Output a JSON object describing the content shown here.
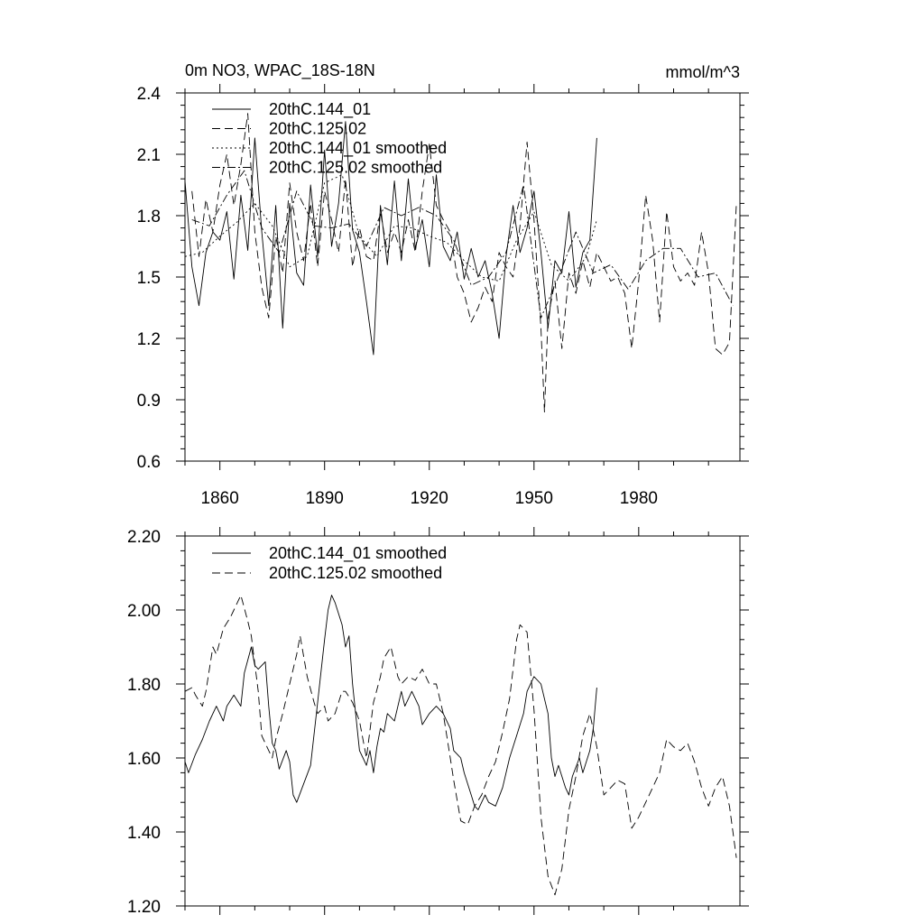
{
  "chart_data": [
    {
      "type": "line",
      "title": "0m NO3, WPAC_18S-18N",
      "units": "mmol/m^3",
      "xlabel": "",
      "ylabel": "",
      "xlim": [
        1850,
        2009
      ],
      "ylim": [
        0.6,
        2.4
      ],
      "x_ticks": [
        1860,
        1890,
        1920,
        1950,
        1980
      ],
      "x_tick_labels": [
        "1860",
        "1890",
        "1920",
        "1950",
        "1980"
      ],
      "y_ticks": [
        0.6,
        0.9,
        1.2,
        1.5,
        1.8,
        2.1,
        2.4
      ],
      "y_tick_labels": [
        "0.6",
        "0.9",
        "1.2",
        "1.5",
        "1.8",
        "2.1",
        "2.4"
      ],
      "legend_position": "top-left",
      "series": [
        {
          "name": "20thC.144_01",
          "dash": "solid",
          "x": [
            1850,
            1852,
            1854,
            1856,
            1858,
            1860,
            1862,
            1864,
            1866,
            1868,
            1870,
            1872,
            1874,
            1876,
            1878,
            1880,
            1882,
            1884,
            1886,
            1888,
            1890,
            1892,
            1894,
            1896,
            1898,
            1900,
            1902,
            1904,
            1906,
            1908,
            1910,
            1912,
            1914,
            1916,
            1918,
            1920,
            1922,
            1924,
            1926,
            1928,
            1930,
            1932,
            1934,
            1936,
            1938,
            1940,
            1942,
            1944,
            1946,
            1948,
            1950,
            1952,
            1954,
            1956,
            1958,
            1960,
            1962,
            1964,
            1966,
            1968
          ],
          "values": [
            1.97,
            1.55,
            1.36,
            1.62,
            1.72,
            1.68,
            1.82,
            1.49,
            1.9,
            1.63,
            2.18,
            1.72,
            1.36,
            1.85,
            1.25,
            1.86,
            1.52,
            1.46,
            1.95,
            1.6,
            2.12,
            1.65,
            1.86,
            2.26,
            1.73,
            1.62,
            1.38,
            1.12,
            1.85,
            1.56,
            1.97,
            1.58,
            1.98,
            1.64,
            1.78,
            1.55,
            2.0,
            1.65,
            1.58,
            1.72,
            1.49,
            1.64,
            1.5,
            1.58,
            1.42,
            1.2,
            1.6,
            1.85,
            1.62,
            1.74,
            1.92,
            1.62,
            1.25,
            1.58,
            1.52,
            1.82,
            1.45,
            1.62,
            1.68,
            2.18
          ]
        },
        {
          "name": "20thC.125.02",
          "dash": "dashed",
          "x": [
            1852,
            1854,
            1856,
            1858,
            1860,
            1862,
            1864,
            1866,
            1868,
            1870,
            1872,
            1874,
            1876,
            1878,
            1880,
            1882,
            1884,
            1886,
            1888,
            1890,
            1892,
            1894,
            1896,
            1898,
            1900,
            1902,
            1904,
            1906,
            1908,
            1910,
            1912,
            1914,
            1916,
            1918,
            1920,
            1922,
            1924,
            1926,
            1928,
            1930,
            1932,
            1934,
            1936,
            1938,
            1940,
            1942,
            1944,
            1946,
            1948,
            1950,
            1952,
            1953,
            1954,
            1956,
            1958,
            1960,
            1962,
            1964,
            1966,
            1968,
            1970,
            1972,
            1974,
            1976,
            1978,
            1980,
            1982,
            1984,
            1986,
            1988,
            1990,
            1992,
            1994,
            1996,
            1998,
            2000,
            2002,
            2004,
            2006,
            2008
          ],
          "values": [
            1.92,
            1.6,
            1.88,
            1.72,
            1.95,
            2.1,
            1.85,
            2.05,
            2.3,
            1.72,
            1.45,
            1.3,
            1.7,
            1.52,
            1.96,
            1.72,
            1.58,
            1.86,
            1.55,
            1.92,
            1.78,
            1.62,
            1.98,
            1.55,
            1.74,
            1.6,
            1.58,
            1.82,
            1.62,
            1.72,
            1.62,
            1.78,
            1.62,
            1.92,
            2.15,
            1.85,
            1.78,
            1.72,
            1.5,
            1.42,
            1.28,
            1.35,
            1.45,
            1.38,
            1.62,
            1.55,
            1.5,
            1.75,
            2.16,
            1.78,
            1.25,
            0.84,
            1.3,
            1.48,
            1.15,
            1.52,
            1.42,
            1.58,
            1.45,
            1.62,
            1.55,
            1.48,
            1.5,
            1.42,
            1.15,
            1.48,
            1.9,
            1.68,
            1.28,
            1.82,
            1.55,
            1.48,
            1.52,
            1.46,
            1.72,
            1.52,
            1.15,
            1.12,
            1.18,
            1.86
          ]
        },
        {
          "name": "20thC.144_01 smoothed",
          "dash": "dotted",
          "x": [
            1850,
            1855,
            1860,
            1865,
            1870,
            1875,
            1880,
            1885,
            1890,
            1895,
            1900,
            1905,
            1910,
            1915,
            1920,
            1925,
            1930,
            1935,
            1940,
            1945,
            1950,
            1955,
            1960,
            1965,
            1968
          ],
          "values": [
            1.6,
            1.62,
            1.7,
            1.77,
            1.86,
            1.75,
            1.55,
            1.6,
            1.96,
            2.0,
            1.7,
            1.6,
            1.75,
            1.74,
            1.7,
            1.67,
            1.58,
            1.5,
            1.48,
            1.68,
            1.82,
            1.56,
            1.48,
            1.6,
            1.78
          ]
        },
        {
          "name": "20thC.125.02 smoothed",
          "dash": "dash-dot",
          "x": [
            1852,
            1857,
            1862,
            1867,
            1872,
            1877,
            1882,
            1887,
            1892,
            1897,
            1902,
            1907,
            1912,
            1917,
            1922,
            1927,
            1932,
            1937,
            1942,
            1947,
            1952,
            1957,
            1962,
            1967,
            1972,
            1977,
            1982,
            1987,
            1992,
            1997,
            2002,
            2007
          ],
          "values": [
            1.78,
            1.75,
            1.9,
            2.02,
            1.74,
            1.62,
            1.92,
            1.75,
            1.74,
            1.76,
            1.65,
            1.84,
            1.8,
            1.84,
            1.8,
            1.68,
            1.46,
            1.5,
            1.62,
            1.95,
            1.3,
            1.5,
            1.72,
            1.52,
            1.56,
            1.44,
            1.58,
            1.64,
            1.64,
            1.5,
            1.52,
            1.36
          ]
        }
      ]
    },
    {
      "type": "line",
      "title": "",
      "xlabel": "",
      "ylabel": "",
      "xlim": [
        1850,
        2009
      ],
      "ylim": [
        1.2,
        2.2
      ],
      "x_ticks": [
        1860,
        1890,
        1920,
        1950,
        1980
      ],
      "y_ticks": [
        1.2,
        1.4,
        1.6,
        1.8,
        2.0,
        2.2
      ],
      "y_tick_labels": [
        "1.20",
        "1.40",
        "1.60",
        "1.80",
        "2.00",
        "2.20"
      ],
      "legend_position": "top-left",
      "series": [
        {
          "name": "20thC.144_01 smoothed",
          "dash": "solid",
          "x": [
            1850,
            1851,
            1853,
            1855,
            1857,
            1859,
            1861,
            1862,
            1864,
            1866,
            1867,
            1869,
            1870,
            1871,
            1873,
            1874,
            1875,
            1876,
            1877,
            1879,
            1880,
            1881,
            1882,
            1884,
            1886,
            1888,
            1890,
            1891,
            1892,
            1893,
            1895,
            1896,
            1897,
            1898,
            1900,
            1901,
            1902,
            1903,
            1904,
            1905,
            1906,
            1907,
            1908,
            1910,
            1912,
            1913,
            1915,
            1917,
            1918,
            1920,
            1922,
            1924,
            1926,
            1927,
            1929,
            1930,
            1932,
            1933,
            1934,
            1936,
            1937,
            1939,
            1941,
            1943,
            1945,
            1947,
            1948,
            1950,
            1952,
            1954,
            1955,
            1956,
            1957,
            1959,
            1960,
            1961,
            1963,
            1964,
            1966,
            1967,
            1968
          ],
          "values": [
            1.59,
            1.56,
            1.61,
            1.65,
            1.7,
            1.74,
            1.7,
            1.74,
            1.77,
            1.74,
            1.83,
            1.9,
            1.85,
            1.84,
            1.86,
            1.74,
            1.64,
            1.62,
            1.57,
            1.62,
            1.59,
            1.5,
            1.48,
            1.53,
            1.58,
            1.75,
            1.92,
            2.0,
            2.04,
            2.02,
            1.96,
            1.9,
            1.93,
            1.8,
            1.62,
            1.6,
            1.58,
            1.62,
            1.56,
            1.63,
            1.68,
            1.67,
            1.72,
            1.7,
            1.78,
            1.74,
            1.78,
            1.74,
            1.69,
            1.72,
            1.74,
            1.72,
            1.68,
            1.62,
            1.6,
            1.56,
            1.5,
            1.47,
            1.46,
            1.5,
            1.48,
            1.47,
            1.52,
            1.6,
            1.66,
            1.72,
            1.78,
            1.82,
            1.8,
            1.72,
            1.6,
            1.55,
            1.58,
            1.52,
            1.5,
            1.55,
            1.6,
            1.56,
            1.62,
            1.68,
            1.79
          ]
        },
        {
          "name": "20thC.125.02 smoothed",
          "dash": "dashed",
          "x": [
            1850,
            1852,
            1853,
            1855,
            1856,
            1858,
            1859,
            1861,
            1863,
            1864,
            1866,
            1868,
            1869,
            1871,
            1872,
            1874,
            1875,
            1876,
            1878,
            1880,
            1882,
            1883,
            1885,
            1887,
            1888,
            1890,
            1891,
            1893,
            1895,
            1896,
            1898,
            1900,
            1902,
            1904,
            1906,
            1907,
            1909,
            1911,
            1912,
            1914,
            1916,
            1918,
            1920,
            1922,
            1924,
            1926,
            1927,
            1929,
            1931,
            1933,
            1935,
            1937,
            1939,
            1941,
            1943,
            1945,
            1946,
            1948,
            1950,
            1952,
            1954,
            1956,
            1958,
            1960,
            1962,
            1964,
            1966,
            1968,
            1970,
            1972,
            1974,
            1976,
            1978,
            1980,
            1982,
            1984,
            1986,
            1988,
            1990,
            1992,
            1994,
            1996,
            1998,
            2000,
            2002,
            2004,
            2006,
            2008
          ],
          "values": [
            1.78,
            1.79,
            1.77,
            1.74,
            1.78,
            1.9,
            1.88,
            1.95,
            1.98,
            2.0,
            2.04,
            1.97,
            1.93,
            1.78,
            1.66,
            1.62,
            1.6,
            1.65,
            1.72,
            1.8,
            1.88,
            1.93,
            1.82,
            1.75,
            1.72,
            1.74,
            1.7,
            1.72,
            1.78,
            1.78,
            1.75,
            1.7,
            1.6,
            1.75,
            1.82,
            1.87,
            1.9,
            1.82,
            1.8,
            1.82,
            1.81,
            1.84,
            1.8,
            1.8,
            1.72,
            1.6,
            1.54,
            1.43,
            1.42,
            1.47,
            1.5,
            1.55,
            1.59,
            1.67,
            1.76,
            1.92,
            1.96,
            1.94,
            1.73,
            1.44,
            1.28,
            1.23,
            1.3,
            1.46,
            1.55,
            1.66,
            1.72,
            1.63,
            1.5,
            1.52,
            1.54,
            1.53,
            1.41,
            1.44,
            1.48,
            1.52,
            1.56,
            1.65,
            1.63,
            1.62,
            1.64,
            1.59,
            1.52,
            1.47,
            1.52,
            1.55,
            1.47,
            1.33
          ]
        }
      ]
    }
  ]
}
